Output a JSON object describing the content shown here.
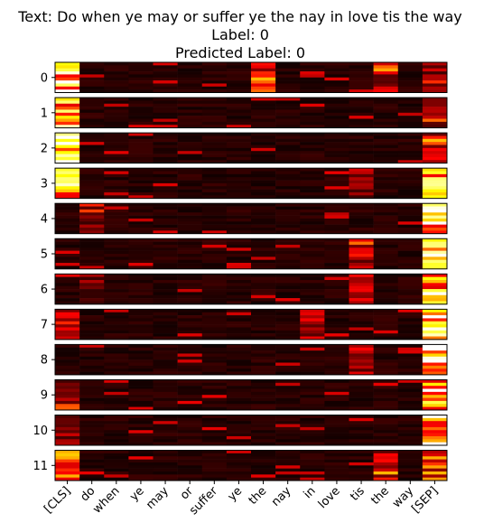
{
  "chart_data": {
    "type": "heatmap",
    "title_lines": [
      "Text: Do when ye may or suffer ye the nay in love tis the way",
      "Label: 0",
      "Predicted Label: 0"
    ],
    "colormap": "hot",
    "tokens": [
      "[CLS]",
      "do",
      "when",
      "ye",
      "may",
      "or",
      "suffer",
      "ye",
      "the",
      "nay",
      "in",
      "love",
      "tis",
      "the",
      "way",
      "[SEP]"
    ],
    "rows": [
      "0",
      "1",
      "2",
      "3",
      "4",
      "5",
      "6",
      "7",
      "8",
      "9",
      "10",
      "11"
    ]
  }
}
